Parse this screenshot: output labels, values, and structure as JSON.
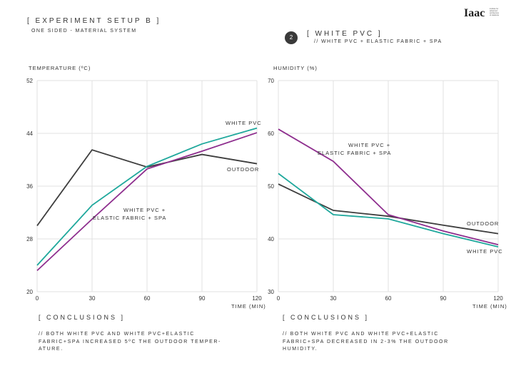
{
  "header": {
    "title": "[ EXPERIMENT SETUP  B ]",
    "subtitle": "ONE SIDED - MATERIAL SYSTEM",
    "badge_number": "2",
    "section_title": "[ WHITE PVC ]",
    "section_subtitle": "// WHITE PVC + ELASTIC FABRIC + SPA",
    "logo_text": "Iaac",
    "logo_subtext": "institute for advanced architecture of catalonia"
  },
  "colors": {
    "outdoor": "#3d3d3d",
    "white_pvc": "#1fa89c",
    "white_pvc_spa": "#8e2e8e",
    "grid": "#e2e2e2"
  },
  "chart_data": [
    {
      "type": "line",
      "title": "TEMPERATURE (ºC)",
      "xlabel": "TIME (MIN)",
      "ylabel": "TEMPERATURE (ºC)",
      "x": [
        0,
        30,
        60,
        90,
        120
      ],
      "xlim": [
        0,
        120
      ],
      "ylim": [
        20,
        52
      ],
      "xticks": [
        "0",
        "30",
        "60",
        "90",
        "120"
      ],
      "yticks": [
        "20",
        "28",
        "36",
        "44",
        "52"
      ],
      "grid": true,
      "series": [
        {
          "name": "OUTDOOR",
          "key": "outdoor",
          "values": [
            30.0,
            41.5,
            38.9,
            40.8,
            39.4
          ]
        },
        {
          "name": "WHITE PVC",
          "key": "white_pvc",
          "values": [
            24.0,
            33.1,
            39.0,
            42.4,
            44.8
          ]
        },
        {
          "name": "WHITE PVC + ELASTIC FABRIC + SPA",
          "key": "white_pvc_spa",
          "values": [
            23.2,
            31.0,
            38.6,
            41.3,
            44.1
          ]
        }
      ],
      "labels": {
        "outdoor": "OUTDOOR",
        "white_pvc": "WHITE PVC",
        "spa_line1": "WHITE PVC +",
        "spa_line2": "ELASTIC FABRIC + SPA"
      }
    },
    {
      "type": "line",
      "title": "HUMIDITY (%)",
      "xlabel": "TIME (MIN)",
      "ylabel": "HUMIDITY (%)",
      "x": [
        0,
        30,
        60,
        90,
        120
      ],
      "xlim": [
        0,
        120
      ],
      "ylim": [
        30,
        70
      ],
      "xticks": [
        "0",
        "30",
        "60",
        "90",
        "120"
      ],
      "yticks": [
        "30",
        "40",
        "50",
        "60",
        "70"
      ],
      "grid": true,
      "series": [
        {
          "name": "OUTDOOR",
          "key": "outdoor",
          "values": [
            50.4,
            45.4,
            44.3,
            42.6,
            41.0
          ]
        },
        {
          "name": "WHITE PVC",
          "key": "white_pvc",
          "values": [
            52.4,
            44.6,
            43.8,
            41.0,
            38.5
          ]
        },
        {
          "name": "WHITE PVC + ELASTIC FABRIC + SPA",
          "key": "white_pvc_spa",
          "values": [
            60.8,
            54.7,
            44.6,
            41.5,
            38.9
          ]
        }
      ],
      "labels": {
        "outdoor": "OUTDOOR",
        "white_pvc": "WHITE PVC",
        "spa_line1": "WHITE PVC +",
        "spa_line2": "ELASTIC FABRIC + SPA"
      }
    }
  ],
  "conclusions": [
    {
      "title": "[ CONCLUSIONS ]",
      "text": "// BOTH WHITE PVC AND WHITE PVC+ELASTIC FABRIC+SPA INCREASED 5ºC THE OUTDOOR TEMPER- ATURE."
    },
    {
      "title": "[ CONCLUSIONS ]",
      "text": "// BOTH WHITE PVC AND WHITE PVC+ELASTIC FABRIC+SPA DECREASED IN 2-3% THE OUTDOOR HUMIDITY."
    }
  ]
}
